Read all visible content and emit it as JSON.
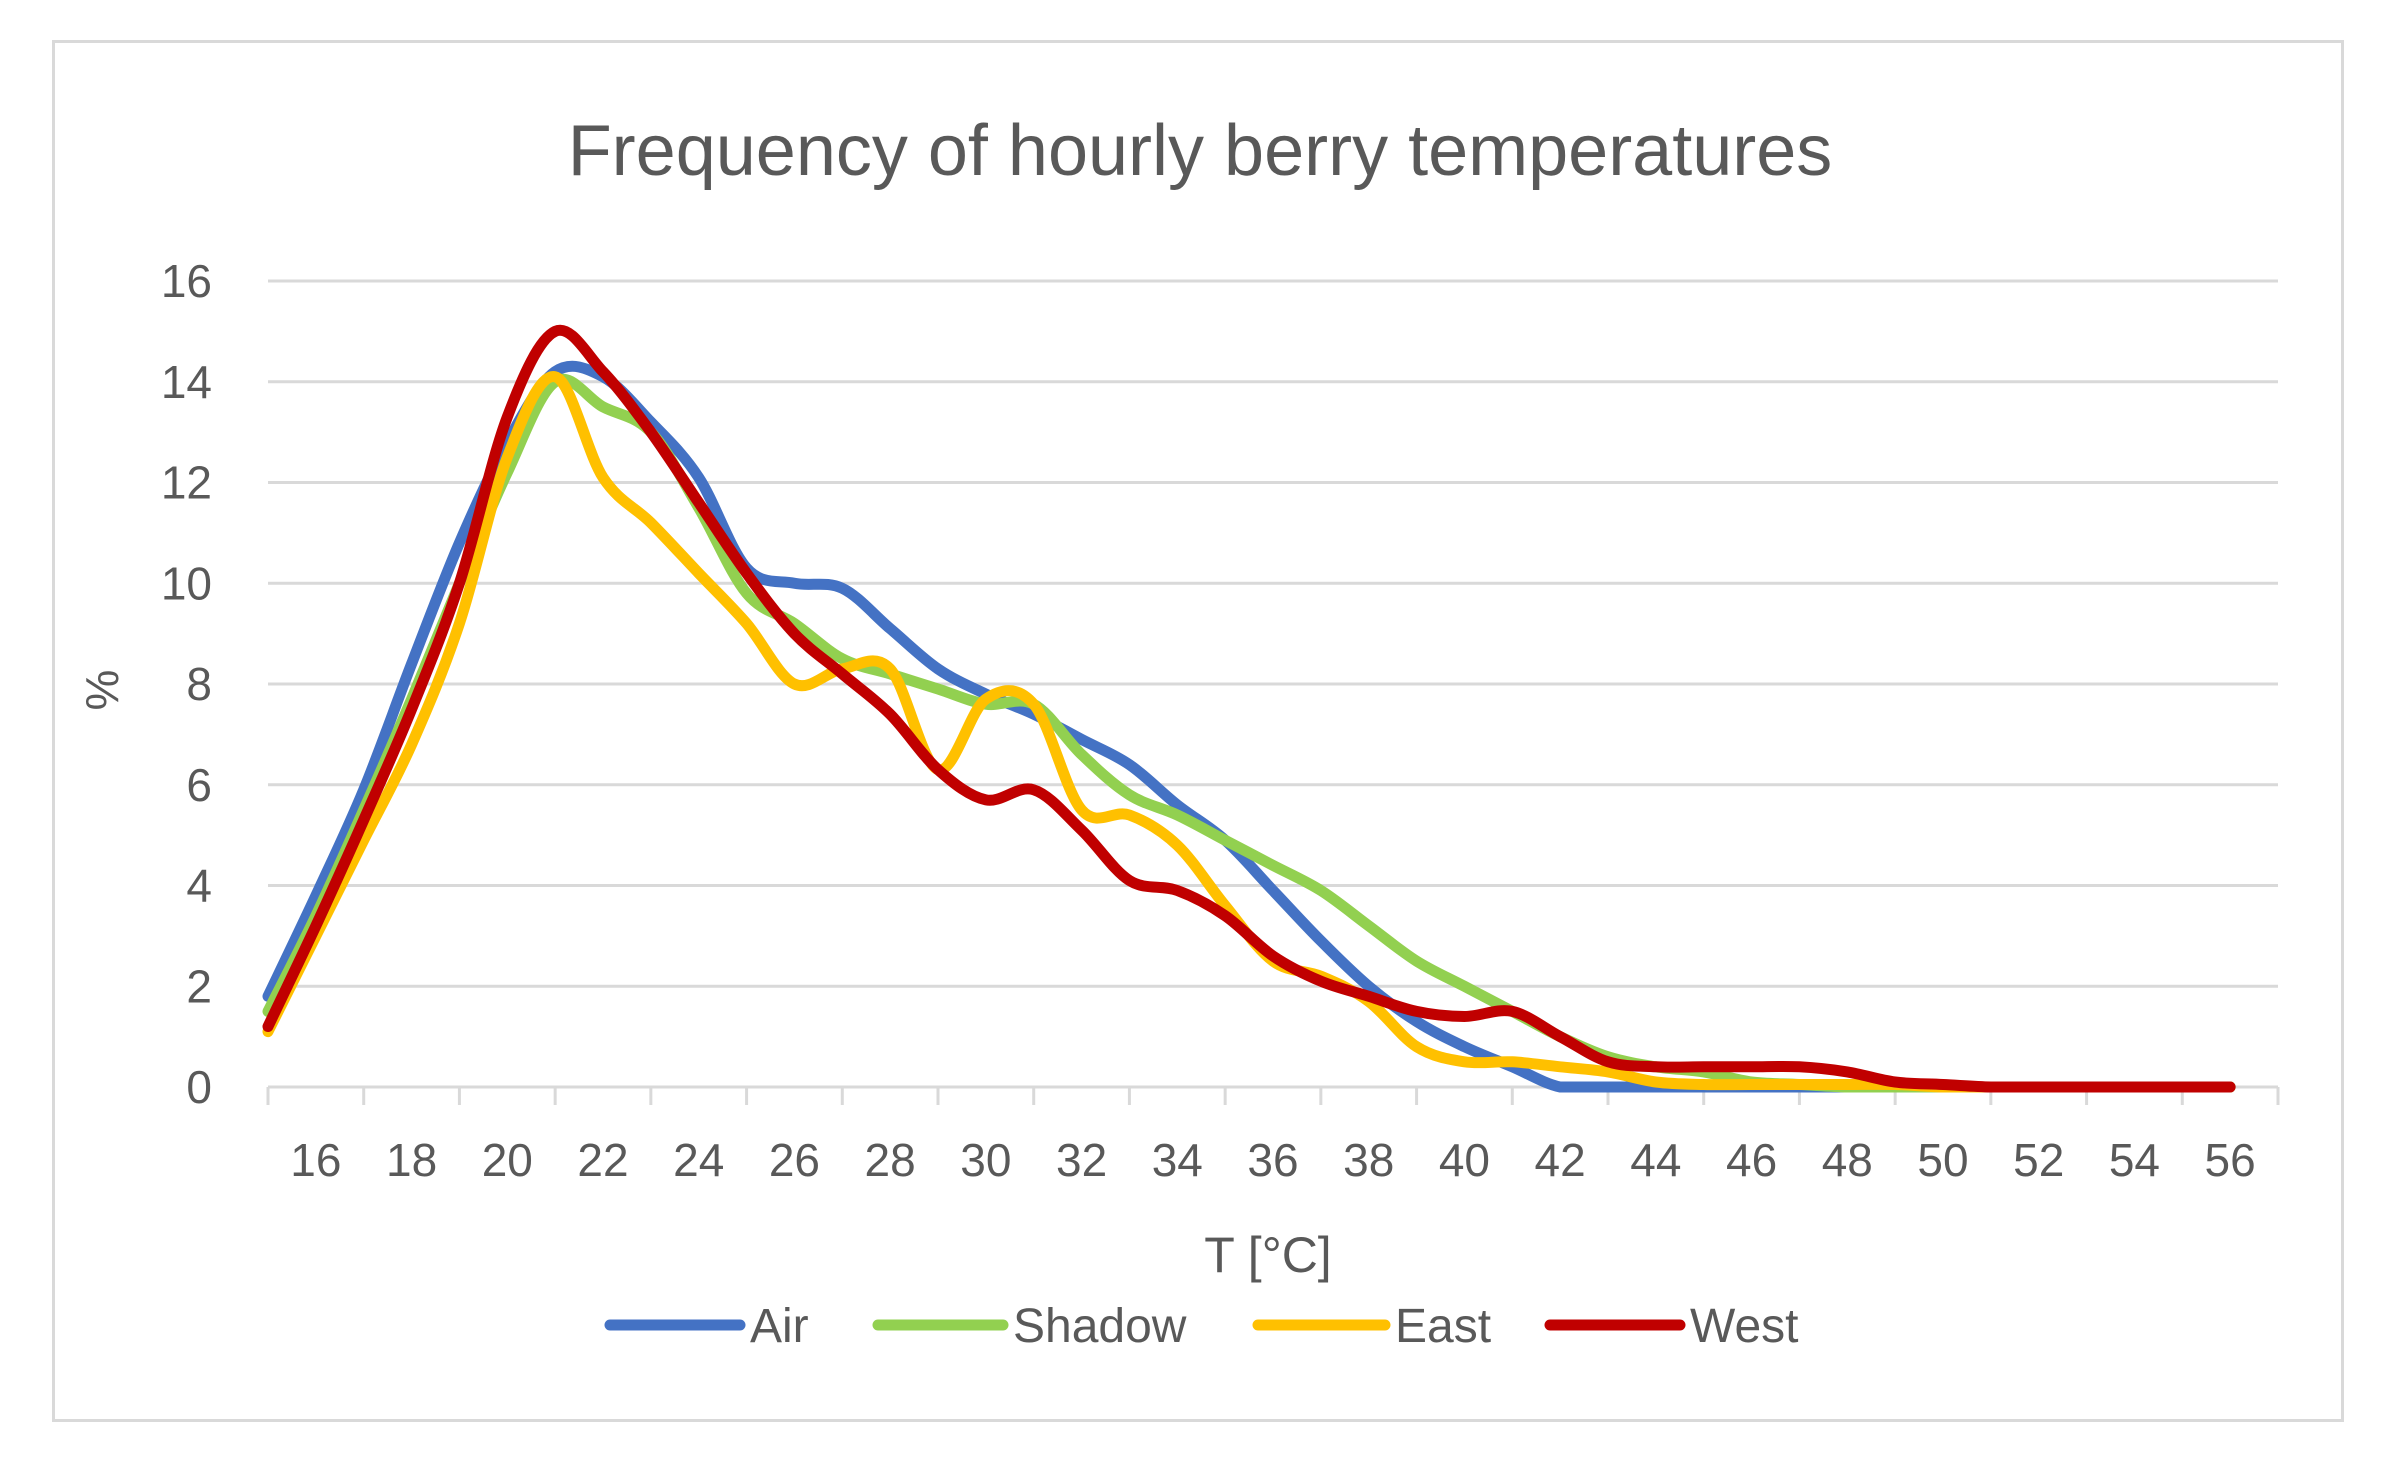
{
  "chart_data": {
    "type": "line",
    "title": "Frequency of hourly berry temperatures",
    "xlabel": "T [°C]",
    "ylabel": "%",
    "x": [
      15,
      16,
      17,
      18,
      19,
      20,
      21,
      22,
      23,
      24,
      25,
      26,
      27,
      28,
      29,
      30,
      31,
      32,
      33,
      34,
      35,
      36,
      37,
      38,
      39,
      40,
      41,
      42,
      43,
      44,
      45,
      46,
      47,
      48,
      49,
      50,
      51,
      52,
      53,
      54,
      55,
      56
    ],
    "x_tick_labels": [
      "16",
      "18",
      "20",
      "22",
      "24",
      "26",
      "28",
      "30",
      "32",
      "34",
      "36",
      "38",
      "40",
      "42",
      "44",
      "46",
      "48",
      "50",
      "52",
      "54",
      "56"
    ],
    "y_ticks": [
      0,
      2,
      4,
      6,
      8,
      10,
      12,
      14,
      16
    ],
    "ylim": [
      0,
      16
    ],
    "smooth": true,
    "grid": true,
    "legend_position": "bottom",
    "series": [
      {
        "name": "Air",
        "color": "#4472C4",
        "values": [
          1.8,
          3.8,
          5.9,
          8.4,
          10.8,
          12.8,
          14.2,
          14.1,
          13.2,
          12.1,
          10.3,
          10.0,
          9.9,
          9.1,
          8.3,
          7.8,
          7.4,
          6.9,
          6.4,
          5.6,
          4.9,
          3.9,
          2.9,
          2.0,
          1.3,
          0.8,
          0.4,
          0.0,
          0,
          0,
          0,
          0,
          0,
          0,
          0,
          0,
          0,
          0,
          0,
          0,
          0,
          0
        ]
      },
      {
        "name": "Shadow",
        "color": "#92D050",
        "values": [
          1.5,
          3.4,
          5.5,
          7.7,
          10.0,
          12.2,
          14.0,
          13.5,
          13.0,
          11.5,
          9.8,
          9.2,
          8.5,
          8.2,
          7.9,
          7.6,
          7.6,
          6.6,
          5.8,
          5.4,
          4.9,
          4.4,
          3.9,
          3.2,
          2.5,
          2.0,
          1.5,
          1.0,
          0.6,
          0.4,
          0.3,
          0.1,
          0.05,
          0,
          0,
          0,
          0,
          0,
          0,
          0,
          0,
          0
        ]
      },
      {
        "name": "East",
        "color": "#FFC000",
        "values": [
          1.1,
          3.0,
          4.9,
          6.8,
          9.2,
          12.5,
          14.1,
          12.1,
          11.2,
          10.2,
          9.2,
          8.0,
          8.3,
          8.3,
          6.3,
          7.7,
          7.6,
          5.5,
          5.4,
          4.8,
          3.6,
          2.5,
          2.2,
          1.7,
          0.8,
          0.5,
          0.5,
          0.4,
          0.3,
          0.1,
          0.05,
          0.05,
          0.05,
          0.05,
          0.05,
          0,
          0,
          0,
          0,
          0,
          0,
          0
        ]
      },
      {
        "name": "West",
        "color": "#C00000",
        "values": [
          1.2,
          3.2,
          5.3,
          7.5,
          10.0,
          13.3,
          15.0,
          14.2,
          13.0,
          11.6,
          10.2,
          9.0,
          8.2,
          7.4,
          6.3,
          5.7,
          5.9,
          5.1,
          4.1,
          3.9,
          3.4,
          2.6,
          2.1,
          1.8,
          1.5,
          1.4,
          1.5,
          1.0,
          0.5,
          0.4,
          0.4,
          0.4,
          0.4,
          0.3,
          0.1,
          0.05,
          0.0,
          0,
          0,
          0,
          0,
          0
        ]
      }
    ]
  }
}
